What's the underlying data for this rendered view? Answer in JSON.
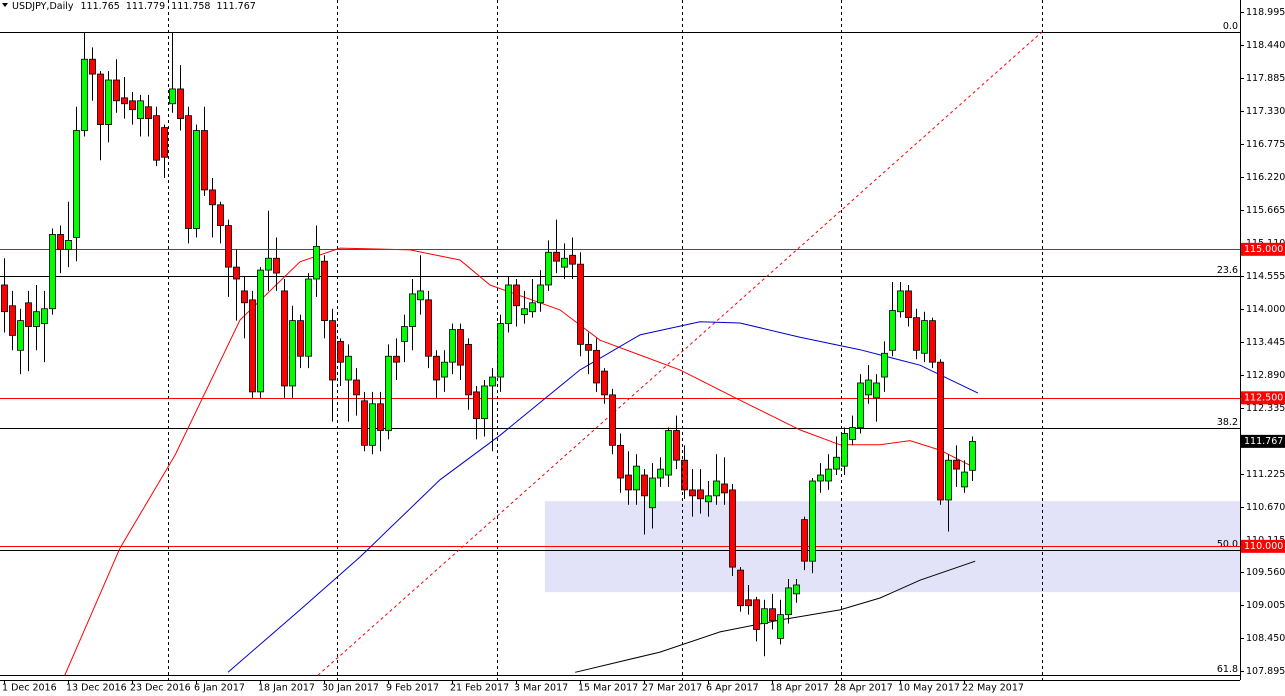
{
  "chart_data": {
    "type": "candlestick",
    "title": "USDJPY,Daily",
    "quote": [
      111.765,
      111.779,
      111.758,
      111.767
    ],
    "categories": [
      "1 Dec 2016",
      null,
      null,
      null,
      null,
      null,
      null,
      null,
      "13 Dec 2016",
      null,
      null,
      null,
      null,
      null,
      null,
      null,
      "23 Dec 2016",
      null,
      null,
      null,
      null,
      null,
      null,
      null,
      "6 Jan 2017",
      null,
      null,
      null,
      null,
      null,
      null,
      null,
      "18 Jan 2017",
      null,
      null,
      null,
      null,
      null,
      null,
      null,
      "30 Jan 2017",
      null,
      null,
      null,
      null,
      null,
      null,
      null,
      "9 Feb 2017",
      null,
      null,
      null,
      null,
      null,
      null,
      null,
      "21 Feb 2017",
      null,
      null,
      null,
      null,
      null,
      null,
      null,
      "3 Mar 2017",
      null,
      null,
      null,
      null,
      null,
      null,
      null,
      "15 Mar 2017",
      null,
      null,
      null,
      null,
      null,
      null,
      null,
      "27 Mar 2017",
      null,
      null,
      null,
      null,
      null,
      null,
      null,
      "6 Apr 2017",
      null,
      null,
      null,
      null,
      null,
      null,
      null,
      "18 Apr 2017",
      null,
      null,
      null,
      null,
      null,
      null,
      null,
      "28 Apr 2017",
      null,
      null,
      null,
      null,
      null,
      null,
      null,
      "10 May 2017",
      null,
      null,
      null,
      null,
      null,
      null,
      null,
      "22 May 2017",
      null
    ],
    "open": [
      114.4,
      114.05,
      113.3,
      114.1,
      113.7,
      113.75,
      114.0,
      115.25,
      115.0,
      115.2,
      117.0,
      118.2,
      117.95,
      117.1,
      117.85,
      117.55,
      117.5,
      117.2,
      117.4,
      117.25,
      117.05,
      117.45,
      117.7,
      117.25,
      115.35,
      117.0,
      116.0,
      115.75,
      115.4,
      114.7,
      114.3,
      114.15,
      112.6,
      114.65,
      114.85,
      114.3,
      112.7,
      113.8,
      113.2,
      114.5,
      114.8,
      113.8,
      113.45,
      112.8,
      112.8,
      112.45,
      111.7,
      112.4,
      111.95,
      113.2,
      113.45,
      113.7,
      114.15,
      114.15,
      113.2,
      112.85,
      113.1,
      113.65,
      113.4,
      112.6,
      112.15,
      112.7,
      112.85,
      113.75,
      114.4,
      113.9,
      113.95,
      114.1,
      114.4,
      114.95,
      114.7,
      114.9,
      114.75,
      113.4,
      113.3,
      112.95,
      112.55,
      111.7,
      111.2,
      110.95,
      111.2,
      110.65,
      111.15,
      111.2,
      111.95,
      111.45,
      110.95,
      110.95,
      110.75,
      110.85,
      111.05,
      110.95,
      109.6,
      109.1,
      109.1,
      108.7,
      108.95,
      108.45,
      108.85,
      109.2,
      110.45,
      109.75,
      111.1,
      111.1,
      111.3,
      111.35,
      111.8,
      112.0,
      112.55,
      112.5,
      112.85,
      113.3,
      113.95,
      114.3,
      113.85,
      113.25,
      113.8,
      113.1,
      110.78,
      111.45,
      111.0,
      111.28
    ],
    "high": [
      114.85,
      114.3,
      114.0,
      114.3,
      114.4,
      114.3,
      115.35,
      115.4,
      115.8,
      117.4,
      118.65,
      118.4,
      118.0,
      118.0,
      118.2,
      117.9,
      117.65,
      117.6,
      117.6,
      117.4,
      117.1,
      118.65,
      118.1,
      117.4,
      117.1,
      117.4,
      116.2,
      115.8,
      115.5,
      115.0,
      114.55,
      114.3,
      114.7,
      115.65,
      115.2,
      114.5,
      114.05,
      113.9,
      114.6,
      115.4,
      114.9,
      114.0,
      113.5,
      113.4,
      113.0,
      112.6,
      112.6,
      112.6,
      113.4,
      113.5,
      113.9,
      114.5,
      114.9,
      114.3,
      113.3,
      113.3,
      113.75,
      113.75,
      113.5,
      112.7,
      112.8,
      113.0,
      113.9,
      114.55,
      114.5,
      114.3,
      114.5,
      114.65,
      115.15,
      115.5,
      115.1,
      115.2,
      114.95,
      113.6,
      113.5,
      113.0,
      112.65,
      111.9,
      111.6,
      111.55,
      111.3,
      111.4,
      111.5,
      112.0,
      112.2,
      111.7,
      111.3,
      111.3,
      111.1,
      111.55,
      111.5,
      111.05,
      109.65,
      109.35,
      109.15,
      109.1,
      109.2,
      109.1,
      109.45,
      109.45,
      110.5,
      111.15,
      111.4,
      111.55,
      111.85,
      112.0,
      112.2,
      112.9,
      113.05,
      112.9,
      113.45,
      114.45,
      114.45,
      114.4,
      114.0,
      113.95,
      113.85,
      113.15,
      111.55,
      111.7,
      111.45,
      111.85
    ],
    "low": [
      113.6,
      113.3,
      112.9,
      112.95,
      113.3,
      113.1,
      113.9,
      114.6,
      114.7,
      114.8,
      116.9,
      117.5,
      116.5,
      116.8,
      117.3,
      117.2,
      117.1,
      116.9,
      116.9,
      116.4,
      116.2,
      117.3,
      117.0,
      115.1,
      115.2,
      115.9,
      115.2,
      115.1,
      114.2,
      113.8,
      113.5,
      112.5,
      112.5,
      114.3,
      114.3,
      112.5,
      112.5,
      113.0,
      113.0,
      114.2,
      113.5,
      112.1,
      112.7,
      112.1,
      112.2,
      111.6,
      111.55,
      111.6,
      111.8,
      112.8,
      113.1,
      113.3,
      113.9,
      113.0,
      112.5,
      112.6,
      112.9,
      112.8,
      112.3,
      111.8,
      111.85,
      111.6,
      112.6,
      113.6,
      113.7,
      113.75,
      113.85,
      113.95,
      114.3,
      114.6,
      114.5,
      114.5,
      113.2,
      112.9,
      112.6,
      112.4,
      111.55,
      110.9,
      110.7,
      110.7,
      110.2,
      110.3,
      111.0,
      111.0,
      111.3,
      110.8,
      110.5,
      110.55,
      110.5,
      110.7,
      110.7,
      109.5,
      108.9,
      108.85,
      108.4,
      108.15,
      108.6,
      108.35,
      108.7,
      109.05,
      109.6,
      109.55,
      110.9,
      110.95,
      111.2,
      111.2,
      111.7,
      111.9,
      112.4,
      112.1,
      112.6,
      113.2,
      113.85,
      113.7,
      113.15,
      113.1,
      113.0,
      110.7,
      110.25,
      111.0,
      110.9,
      111.1
    ],
    "close": [
      113.95,
      113.55,
      113.8,
      113.7,
      113.95,
      114.0,
      115.25,
      115.0,
      115.15,
      117.0,
      118.2,
      117.95,
      117.1,
      117.85,
      117.5,
      117.45,
      117.35,
      117.5,
      117.2,
      116.5,
      116.55,
      117.7,
      117.2,
      115.35,
      117.0,
      116.0,
      115.75,
      115.4,
      114.7,
      114.5,
      114.1,
      112.6,
      114.65,
      114.85,
      114.6,
      112.7,
      113.8,
      113.2,
      114.5,
      115.05,
      113.8,
      112.8,
      113.1,
      113.2,
      112.55,
      111.7,
      112.4,
      111.95,
      113.2,
      113.1,
      113.7,
      114.25,
      114.3,
      113.2,
      112.8,
      113.1,
      113.65,
      113.05,
      112.55,
      112.15,
      112.7,
      112.85,
      113.75,
      114.4,
      114.05,
      114.0,
      114.1,
      114.4,
      114.95,
      114.8,
      114.85,
      114.75,
      113.4,
      113.3,
      112.75,
      112.55,
      111.7,
      111.15,
      110.95,
      111.35,
      110.85,
      111.15,
      111.3,
      111.95,
      111.45,
      110.95,
      110.85,
      110.8,
      110.85,
      111.1,
      110.9,
      109.65,
      109.0,
      109.0,
      108.6,
      108.95,
      108.75,
      108.85,
      109.3,
      109.35,
      109.75,
      111.1,
      111.2,
      111.3,
      111.5,
      111.9,
      112.0,
      112.75,
      112.8,
      112.75,
      113.25,
      113.97,
      114.3,
      113.85,
      113.3,
      113.8,
      113.1,
      110.78,
      111.45,
      111.3,
      111.25,
      111.767
    ],
    "colors": {
      "up": "#00ff00",
      "down": "#ff0000",
      "wick": "#000000"
    },
    "xlim": [
      -0.5,
      154.5
    ],
    "ylim": [
      107.75,
      119.197
    ],
    "yticks": [
      118.995,
      {
        "value": 118.44,
        "label": "118.440"
      },
      117.885,
      {
        "value": 117.33,
        "label": "117.330"
      },
      116.775,
      {
        "value": 116.22,
        "label": "116.220"
      },
      115.665,
      {
        "value": 115.11,
        "label": "115.110"
      },
      114.555,
      {
        "value": 114,
        "label": "114.000"
      },
      113.445,
      {
        "value": 112.89,
        "label": "112.890"
      },
      112.335,
      {
        "value": 111.78,
        "label": "111.780"
      },
      111.225,
      {
        "value": 110.67,
        "label": "110.670"
      },
      110.115,
      {
        "value": 109.56,
        "label": "109.560"
      },
      109.005,
      {
        "value": 108.45,
        "label": "108.450"
      },
      107.895
    ],
    "lines": [
      {
        "color": "#ff0000",
        "x": [
          7.6,
          14.5,
          21.4,
          29.5,
          37,
          42,
          50.75,
          57,
          60.75,
          69.5,
          74.5,
          84.5,
          92,
          99.5,
          104.5,
          109.5,
          113.25,
          117,
          121.4
        ],
        "values": [
          107.83,
          109.97,
          111.54,
          113.81,
          114.79,
          115.02,
          114.99,
          114.82,
          114.4,
          113.98,
          113.47,
          112.97,
          112.46,
          111.96,
          111.71,
          111.71,
          111.78,
          111.62,
          111.32
        ]
      },
      {
        "color": "#0000cd",
        "x": [
          28,
          37,
          44.5,
          54.5,
          62,
          72,
          79.5,
          87,
          92,
          99.5,
          107,
          114.5,
          121.75
        ],
        "values": [
          107.88,
          108.93,
          109.82,
          111.12,
          111.87,
          112.97,
          113.56,
          113.78,
          113.76,
          113.52,
          113.31,
          113.05,
          112.58
        ]
      },
      {
        "color": "#000000",
        "x": [
          71.4,
          82,
          89.5,
          97,
          104.5,
          109.5,
          114.5,
          121.4
        ],
        "values": [
          107.88,
          108.22,
          108.56,
          108.76,
          108.93,
          109.13,
          109.43,
          109.75
        ]
      }
    ],
    "trendline": {
      "color": "#ff0000",
      "x": [
        39.25,
        129.75
      ],
      "values": [
        107.83,
        118.66
      ]
    },
    "zone": {
      "color": "#e2e2f8",
      "x": [
        67.6,
        154.5
      ],
      "values": [
        110.76,
        109.23
      ]
    },
    "levels": [
      {
        "value": 115,
        "label": "115.000",
        "color": "#ff0000"
      },
      {
        "value": 112.5,
        "label": "112.500",
        "color": "#ff0000"
      },
      {
        "value": 110,
        "label": "110.000",
        "color": "#ff0000"
      }
    ],
    "fib": {
      "color": "#000000",
      "levels": [
        {
          "value": 118.66,
          "label": "0.0"
        },
        {
          "value": 114.55,
          "label": "23.6"
        },
        {
          "value": 112.0,
          "label": "38.2"
        },
        {
          "value": 109.93,
          "label": "50.0"
        },
        {
          "value": 107.84,
          "label": "61.8"
        }
      ]
    }
  }
}
